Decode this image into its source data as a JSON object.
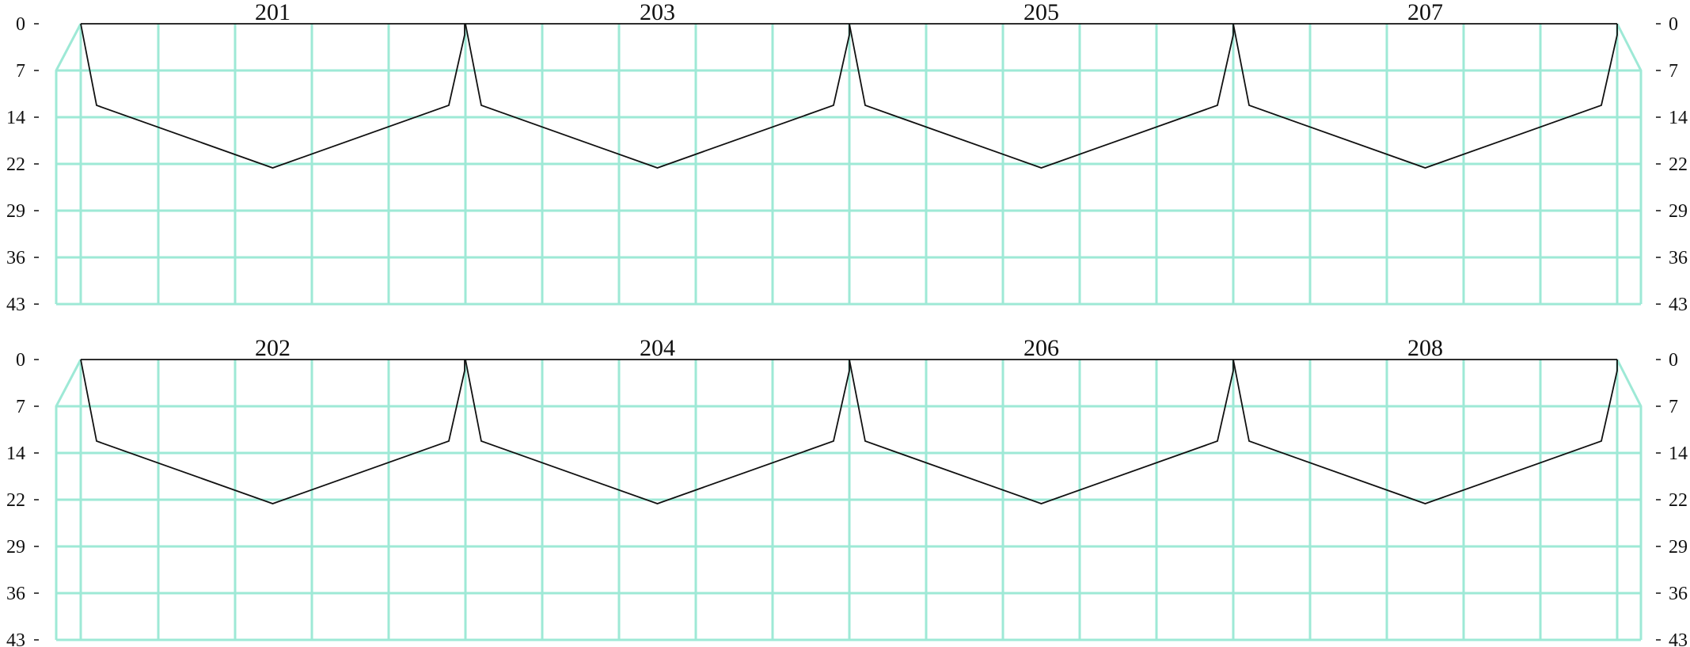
{
  "y_ticks": [
    "0",
    "7",
    "14",
    "22",
    "29",
    "36",
    "43"
  ],
  "rows": [
    {
      "labels": [
        "201",
        "203",
        "205",
        "207"
      ]
    },
    {
      "labels": [
        "202",
        "204",
        "206",
        "208"
      ]
    }
  ],
  "colors": {
    "grid": "#9ee9d6",
    "profile": "#111111",
    "text": "#111111"
  }
}
